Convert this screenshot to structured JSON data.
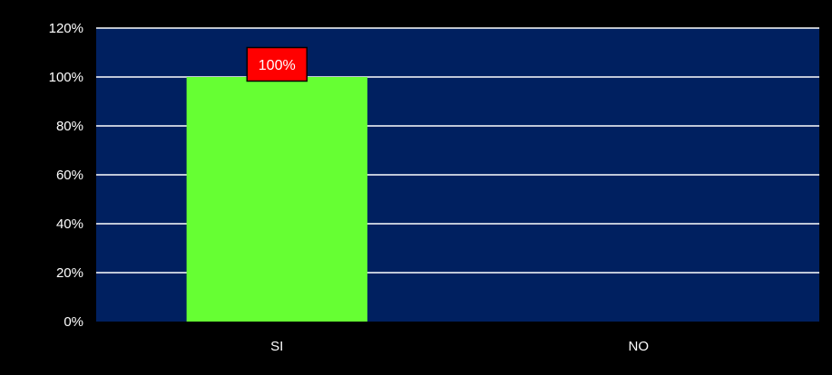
{
  "chart_data": {
    "type": "bar",
    "categories": [
      "SI",
      "NO"
    ],
    "values": [
      100,
      0
    ],
    "value_format": "percent",
    "data_labels": [
      "100%",
      ""
    ],
    "y_ticks": [
      "0%",
      "20%",
      "40%",
      "60%",
      "80%",
      "100%",
      "120%"
    ],
    "ylim": [
      0,
      120
    ],
    "grid": true,
    "title": "",
    "xlabel": "",
    "ylabel": ""
  },
  "colors": {
    "background": "#000000",
    "plot_area": "#002060",
    "bar": "#66FF33",
    "gridline": "#FFFFFF",
    "data_label_bg": "#FF0000",
    "text": "#FFFFFF"
  }
}
